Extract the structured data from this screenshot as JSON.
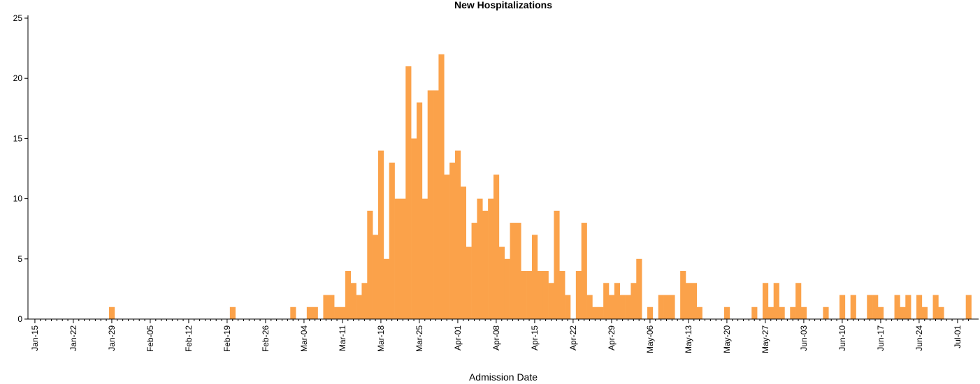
{
  "chart_data": {
    "type": "bar",
    "title": "New Hospitalizations",
    "x_label": "Admission Date",
    "color": "#fba24a",
    "categories": [
      "Jan-15",
      null,
      null,
      null,
      null,
      null,
      null,
      "Jan-22",
      null,
      null,
      null,
      null,
      null,
      null,
      "Jan-29",
      null,
      null,
      null,
      null,
      null,
      null,
      "Feb-05",
      null,
      null,
      null,
      null,
      null,
      null,
      "Feb-12",
      null,
      null,
      null,
      null,
      null,
      null,
      "Feb-19",
      null,
      null,
      null,
      null,
      null,
      null,
      "Feb-26",
      null,
      null,
      null,
      null,
      null,
      null,
      "Mar-04",
      null,
      null,
      null,
      null,
      null,
      null,
      "Mar-11",
      null,
      null,
      null,
      null,
      null,
      null,
      "Mar-18",
      null,
      null,
      null,
      null,
      null,
      null,
      "Mar-25",
      null,
      null,
      null,
      null,
      null,
      null,
      "Apr-01",
      null,
      null,
      null,
      null,
      null,
      null,
      "Apr-08",
      null,
      null,
      null,
      null,
      null,
      null,
      "Apr-15",
      null,
      null,
      null,
      null,
      null,
      null,
      "Apr-22",
      null,
      null,
      null,
      null,
      null,
      null,
      "Apr-29",
      null,
      null,
      null,
      null,
      null,
      null,
      "May-06",
      null,
      null,
      null,
      null,
      null,
      null,
      "May-13",
      null,
      null,
      null,
      null,
      null,
      null,
      "May-20",
      null,
      null,
      null,
      null,
      null,
      null,
      "May-27",
      null,
      null,
      null,
      null,
      null,
      null,
      "Jun-03",
      null,
      null,
      null,
      null,
      null,
      null,
      "Jun-10",
      null,
      null,
      null,
      null,
      null,
      null,
      "Jun-17",
      null,
      null,
      null,
      null,
      null,
      null,
      "Jun-24",
      null,
      null,
      null,
      null,
      null,
      null,
      "Jul-01",
      null,
      null
    ],
    "values": [
      0,
      0,
      0,
      0,
      0,
      0,
      0,
      0,
      0,
      0,
      0,
      0,
      0,
      0,
      1,
      0,
      0,
      0,
      0,
      0,
      0,
      0,
      0,
      0,
      0,
      0,
      0,
      0,
      0,
      0,
      0,
      0,
      0,
      0,
      0,
      0,
      1,
      0,
      0,
      0,
      0,
      0,
      0,
      0,
      0,
      0,
      0,
      1,
      0,
      0,
      1,
      1,
      0,
      2,
      2,
      1,
      1,
      4,
      3,
      2,
      3,
      9,
      7,
      14,
      5,
      13,
      10,
      10,
      21,
      15,
      18,
      10,
      19,
      19,
      22,
      12,
      13,
      14,
      11,
      6,
      8,
      10,
      9,
      10,
      12,
      6,
      5,
      8,
      8,
      4,
      4,
      7,
      4,
      4,
      3,
      9,
      4,
      2,
      0,
      4,
      8,
      2,
      1,
      1,
      3,
      2,
      3,
      2,
      2,
      3,
      5,
      0,
      1,
      0,
      2,
      2,
      2,
      0,
      4,
      3,
      3,
      1,
      0,
      0,
      0,
      0,
      1,
      0,
      0,
      0,
      0,
      1,
      0,
      3,
      1,
      3,
      1,
      0,
      1,
      3,
      1,
      0,
      0,
      0,
      1,
      0,
      0,
      2,
      0,
      2,
      0,
      0,
      2,
      2,
      1,
      0,
      0,
      2,
      1,
      2,
      0,
      2,
      1,
      0,
      2,
      1,
      0,
      0,
      0,
      0,
      2
    ],
    "ylim": [
      0,
      25
    ],
    "yticks": [
      0,
      5,
      10,
      15,
      20,
      25
    ]
  }
}
